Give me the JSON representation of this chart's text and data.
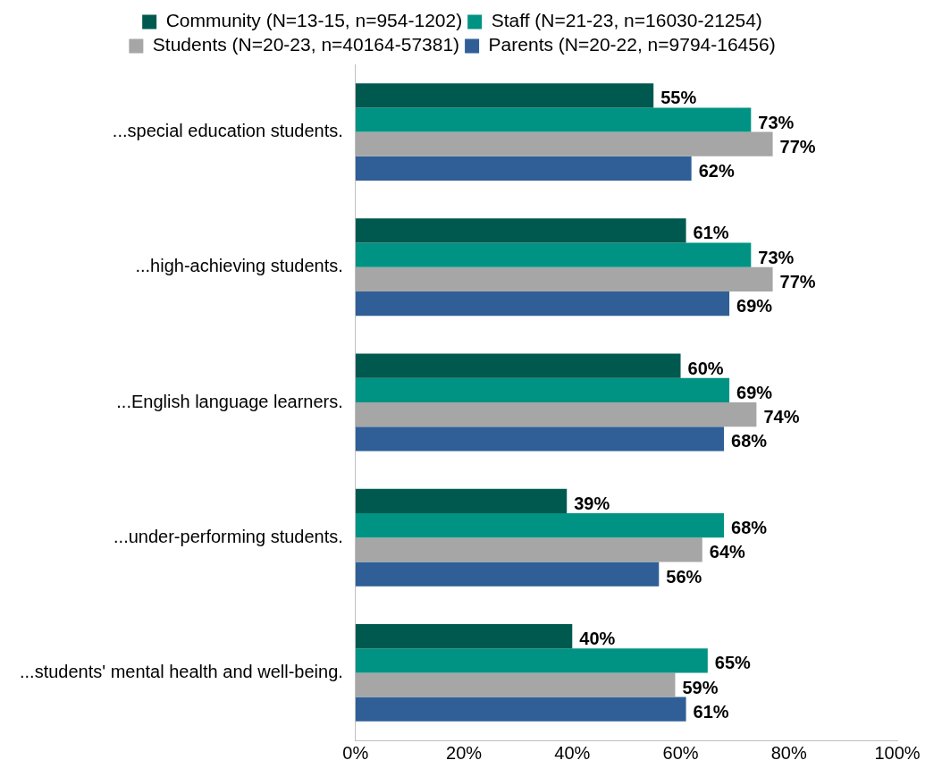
{
  "chart_data": {
    "type": "bar",
    "orientation": "horizontal",
    "categories": [
      "...special education students.",
      "...high-achieving students.",
      "...English language learners.",
      "...under-performing students.",
      "...students' mental health and well-being."
    ],
    "series": [
      {
        "name": "Community (N=13-15, n=954-1202)",
        "color": "#00594f",
        "values": [
          55,
          61,
          60,
          39,
          40
        ],
        "value_labels": [
          "55%",
          "61%",
          "60%",
          "39%",
          "40%"
        ]
      },
      {
        "name": "Staff (N=21-23, n=16030-21254)",
        "color": "#009383",
        "values": [
          73,
          73,
          69,
          68,
          65
        ],
        "value_labels": [
          "73%",
          "73%",
          "69%",
          "68%",
          "65%"
        ]
      },
      {
        "name": "Students (N=20-23, n=40164-57381)",
        "color": "#a6a6a6",
        "values": [
          77,
          77,
          74,
          64,
          59
        ],
        "value_labels": [
          "77%",
          "77%",
          "74%",
          "64%",
          "59%"
        ]
      },
      {
        "name": "Parents (N=20-22, n=9794-16456)",
        "color": "#2f5f96",
        "values": [
          62,
          69,
          68,
          56,
          61
        ],
        "value_labels": [
          "62%",
          "69%",
          "68%",
          "56%",
          "61%"
        ]
      }
    ],
    "xlim": [
      0,
      100
    ],
    "xticks": [
      {
        "value": 0,
        "label": "0%"
      },
      {
        "value": 20,
        "label": "20%"
      },
      {
        "value": 40,
        "label": "40%"
      },
      {
        "value": 60,
        "label": "60%"
      },
      {
        "value": 80,
        "label": "80%"
      },
      {
        "value": 100,
        "label": "100%"
      }
    ],
    "grid": false,
    "legend": "top"
  }
}
